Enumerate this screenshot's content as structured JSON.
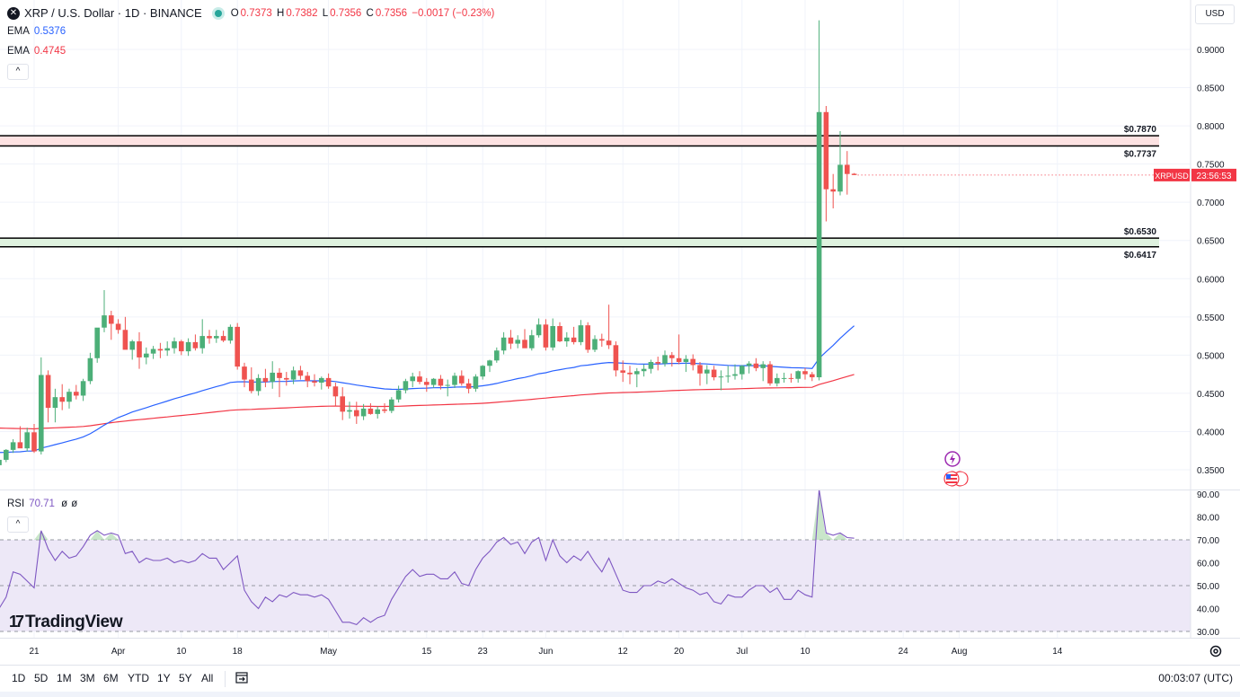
{
  "header": {
    "symbol_icon": "x-icon",
    "title": "XRP / U.S. Dollar · 1D · BINANCE",
    "o_label": "O",
    "o_value": "0.7373",
    "h_label": "H",
    "h_value": "0.7382",
    "l_label": "L",
    "l_value": "0.7356",
    "c_label": "C",
    "c_value": "0.7356",
    "change": "−0.0017 (−0.23%)",
    "ema1_label": "EMA",
    "ema1_value": "0.5376",
    "ema2_label": "EMA",
    "ema2_value": "0.4745",
    "collapse_icon": "^"
  },
  "currency_button": "USD",
  "rsi_legend": {
    "label": "RSI",
    "value": "70.71",
    "p1": "ø",
    "p2": "ø",
    "collapse_icon": "^"
  },
  "logo": {
    "mark": "17",
    "text": "TradingView"
  },
  "bottom_bar": {
    "timeframes": [
      "1D",
      "5D",
      "1M",
      "3M",
      "6M",
      "YTD",
      "1Y",
      "5Y",
      "All"
    ],
    "clock": "00:03:07 (UTC)"
  },
  "colors": {
    "up": "#26a69a",
    "up_candle": "#4caf78",
    "down": "#f23645",
    "down_candle": "#ef5350",
    "ema_fast": "#2962ff",
    "ema_slow": "#f23645",
    "rsi": "#7e57c2",
    "grid": "#f0f3fa"
  },
  "chart_data": {
    "type": "candlestick",
    "title": "XRP / U.S. Dollar · 1D · BINANCE",
    "price_axis": {
      "ylim": [
        0.32,
        0.94
      ],
      "ticks": [
        "0.9000",
        "0.8500",
        "0.8000",
        "0.7500",
        "0.7000",
        "0.6500",
        "0.6000",
        "0.5500",
        "0.5000",
        "0.4500",
        "0.4000",
        "0.3500"
      ]
    },
    "x_axis": {
      "labels": [
        "21",
        "Apr",
        "10",
        "18",
        "May",
        "15",
        "23",
        "Jun",
        "12",
        "20",
        "Jul",
        "10",
        "24",
        "Aug",
        "14"
      ],
      "label_days": [
        5,
        17,
        26,
        34,
        47,
        61,
        69,
        78,
        89,
        97,
        106,
        115,
        129,
        137,
        151
      ]
    },
    "candles": [
      [
        0.356,
        0.365,
        0.354,
        0.363
      ],
      [
        0.363,
        0.377,
        0.36,
        0.376
      ],
      [
        0.376,
        0.39,
        0.372,
        0.386
      ],
      [
        0.386,
        0.407,
        0.38,
        0.378
      ],
      [
        0.378,
        0.405,
        0.374,
        0.399
      ],
      [
        0.399,
        0.41,
        0.372,
        0.374
      ],
      [
        0.374,
        0.497,
        0.37,
        0.474
      ],
      [
        0.474,
        0.48,
        0.412,
        0.431
      ],
      [
        0.431,
        0.456,
        0.412,
        0.445
      ],
      [
        0.445,
        0.462,
        0.428,
        0.439
      ],
      [
        0.439,
        0.456,
        0.43,
        0.452
      ],
      [
        0.452,
        0.461,
        0.442,
        0.447
      ],
      [
        0.447,
        0.469,
        0.44,
        0.466
      ],
      [
        0.466,
        0.503,
        0.462,
        0.496
      ],
      [
        0.496,
        0.532,
        0.49,
        0.536
      ],
      [
        0.536,
        0.585,
        0.53,
        0.552
      ],
      [
        0.552,
        0.558,
        0.52,
        0.541
      ],
      [
        0.541,
        0.547,
        0.528,
        0.533
      ],
      [
        0.533,
        0.55,
        0.508,
        0.507
      ],
      [
        0.507,
        0.52,
        0.494,
        0.518
      ],
      [
        0.518,
        0.53,
        0.482,
        0.497
      ],
      [
        0.497,
        0.51,
        0.488,
        0.502
      ],
      [
        0.502,
        0.512,
        0.495,
        0.508
      ],
      [
        0.508,
        0.516,
        0.496,
        0.506
      ],
      [
        0.506,
        0.518,
        0.499,
        0.509
      ],
      [
        0.509,
        0.523,
        0.502,
        0.518
      ],
      [
        0.518,
        0.52,
        0.5,
        0.505
      ],
      [
        0.505,
        0.522,
        0.499,
        0.517
      ],
      [
        0.517,
        0.527,
        0.506,
        0.509
      ],
      [
        0.509,
        0.547,
        0.502,
        0.525
      ],
      [
        0.525,
        0.533,
        0.515,
        0.522
      ],
      [
        0.522,
        0.533,
        0.516,
        0.525
      ],
      [
        0.525,
        0.532,
        0.517,
        0.519
      ],
      [
        0.519,
        0.54,
        0.515,
        0.537
      ],
      [
        0.537,
        0.542,
        0.481,
        0.485
      ],
      [
        0.485,
        0.49,
        0.458,
        0.468
      ],
      [
        0.468,
        0.484,
        0.45,
        0.453
      ],
      [
        0.453,
        0.475,
        0.447,
        0.47
      ],
      [
        0.47,
        0.482,
        0.458,
        0.465
      ],
      [
        0.465,
        0.492,
        0.456,
        0.477
      ],
      [
        0.477,
        0.483,
        0.445,
        0.47
      ],
      [
        0.47,
        0.478,
        0.46,
        0.468
      ],
      [
        0.468,
        0.485,
        0.462,
        0.48
      ],
      [
        0.48,
        0.486,
        0.468,
        0.473
      ],
      [
        0.473,
        0.478,
        0.458,
        0.466
      ],
      [
        0.466,
        0.475,
        0.459,
        0.464
      ],
      [
        0.464,
        0.472,
        0.455,
        0.47
      ],
      [
        0.47,
        0.476,
        0.456,
        0.459
      ],
      [
        0.459,
        0.464,
        0.433,
        0.446
      ],
      [
        0.446,
        0.458,
        0.415,
        0.426
      ],
      [
        0.426,
        0.439,
        0.417,
        0.428
      ],
      [
        0.428,
        0.439,
        0.41,
        0.42
      ],
      [
        0.42,
        0.436,
        0.415,
        0.43
      ],
      [
        0.43,
        0.437,
        0.422,
        0.423
      ],
      [
        0.423,
        0.433,
        0.417,
        0.429
      ],
      [
        0.429,
        0.437,
        0.424,
        0.427
      ],
      [
        0.427,
        0.445,
        0.424,
        0.442
      ],
      [
        0.442,
        0.46,
        0.438,
        0.454
      ],
      [
        0.454,
        0.469,
        0.45,
        0.466
      ],
      [
        0.466,
        0.477,
        0.458,
        0.472
      ],
      [
        0.472,
        0.479,
        0.462,
        0.465
      ],
      [
        0.465,
        0.47,
        0.452,
        0.461
      ],
      [
        0.461,
        0.47,
        0.457,
        0.469
      ],
      [
        0.469,
        0.474,
        0.455,
        0.46
      ],
      [
        0.46,
        0.468,
        0.446,
        0.461
      ],
      [
        0.461,
        0.477,
        0.457,
        0.473
      ],
      [
        0.473,
        0.48,
        0.46,
        0.463
      ],
      [
        0.463,
        0.469,
        0.45,
        0.456
      ],
      [
        0.456,
        0.475,
        0.452,
        0.472
      ],
      [
        0.472,
        0.487,
        0.468,
        0.486
      ],
      [
        0.486,
        0.494,
        0.478,
        0.493
      ],
      [
        0.493,
        0.51,
        0.49,
        0.506
      ],
      [
        0.506,
        0.53,
        0.501,
        0.523
      ],
      [
        0.523,
        0.533,
        0.508,
        0.515
      ],
      [
        0.515,
        0.526,
        0.509,
        0.52
      ],
      [
        0.52,
        0.534,
        0.511,
        0.509
      ],
      [
        0.509,
        0.533,
        0.506,
        0.526
      ],
      [
        0.526,
        0.548,
        0.523,
        0.54
      ],
      [
        0.54,
        0.547,
        0.506,
        0.51
      ],
      [
        0.51,
        0.548,
        0.506,
        0.538
      ],
      [
        0.538,
        0.543,
        0.517,
        0.518
      ],
      [
        0.518,
        0.53,
        0.511,
        0.523
      ],
      [
        0.523,
        0.537,
        0.514,
        0.517
      ],
      [
        0.517,
        0.546,
        0.513,
        0.539
      ],
      [
        0.539,
        0.543,
        0.503,
        0.507
      ],
      [
        0.507,
        0.526,
        0.504,
        0.521
      ],
      [
        0.521,
        0.528,
        0.511,
        0.519
      ],
      [
        0.519,
        0.566,
        0.508,
        0.513
      ],
      [
        0.513,
        0.518,
        0.472,
        0.48
      ],
      [
        0.48,
        0.493,
        0.465,
        0.477
      ],
      [
        0.477,
        0.486,
        0.462,
        0.475
      ],
      [
        0.475,
        0.483,
        0.458,
        0.479
      ],
      [
        0.479,
        0.488,
        0.472,
        0.482
      ],
      [
        0.482,
        0.494,
        0.476,
        0.491
      ],
      [
        0.491,
        0.498,
        0.48,
        0.489
      ],
      [
        0.489,
        0.506,
        0.485,
        0.5
      ],
      [
        0.5,
        0.504,
        0.485,
        0.496
      ],
      [
        0.496,
        0.527,
        0.488,
        0.491
      ],
      [
        0.491,
        0.5,
        0.478,
        0.495
      ],
      [
        0.495,
        0.501,
        0.48,
        0.487
      ],
      [
        0.487,
        0.491,
        0.46,
        0.476
      ],
      [
        0.476,
        0.487,
        0.462,
        0.481
      ],
      [
        0.481,
        0.486,
        0.467,
        0.471
      ],
      [
        0.471,
        0.48,
        0.454,
        0.472
      ],
      [
        0.472,
        0.486,
        0.464,
        0.473
      ],
      [
        0.473,
        0.488,
        0.468,
        0.475
      ],
      [
        0.475,
        0.487,
        0.468,
        0.486
      ],
      [
        0.486,
        0.492,
        0.476,
        0.489
      ],
      [
        0.489,
        0.496,
        0.479,
        0.483
      ],
      [
        0.483,
        0.492,
        0.466,
        0.488
      ],
      [
        0.488,
        0.492,
        0.46,
        0.463
      ],
      [
        0.463,
        0.476,
        0.459,
        0.47
      ],
      [
        0.47,
        0.477,
        0.464,
        0.47
      ],
      [
        0.47,
        0.476,
        0.464,
        0.469
      ],
      [
        0.469,
        0.48,
        0.464,
        0.479
      ],
      [
        0.479,
        0.483,
        0.468,
        0.475
      ],
      [
        0.475,
        0.478,
        0.466,
        0.471
      ],
      [
        0.471,
        0.938,
        0.467,
        0.818
      ],
      [
        0.818,
        0.826,
        0.675,
        0.717
      ],
      [
        0.717,
        0.737,
        0.692,
        0.714
      ],
      [
        0.714,
        0.793,
        0.709,
        0.749
      ],
      [
        0.749,
        0.767,
        0.71,
        0.737
      ],
      [
        0.7373,
        0.7382,
        0.7356,
        0.7356
      ]
    ],
    "ema_fast": {
      "name": "EMA",
      "value": 0.5376,
      "color": "#2962ff"
    },
    "ema_slow": {
      "name": "EMA",
      "value": 0.4745,
      "color": "#f23645"
    },
    "levels": [
      {
        "name": "resistance",
        "upper": 0.787,
        "lower": 0.7737,
        "upper_label": "$0.7870",
        "lower_label": "$0.7737",
        "fill": "#fde2e2"
      },
      {
        "name": "support",
        "upper": 0.653,
        "lower": 0.6417,
        "upper_label": "$0.6530",
        "lower_label": "$0.6417",
        "fill": "#dff2df"
      }
    ],
    "last_price": {
      "symbol": "XRPUSD",
      "countdown": "23:56:53",
      "price": 0.7356
    },
    "rsi": {
      "name": "RSI",
      "value": 70.71,
      "ylim": [
        28,
        92
      ],
      "ticks": [
        "90.00",
        "80.00",
        "70.00",
        "60.00",
        "50.00",
        "40.00",
        "30.00"
      ],
      "band": [
        30,
        70
      ],
      "mid": 50,
      "values": [
        40,
        45,
        56,
        55,
        52,
        49,
        74,
        66,
        61,
        65,
        62,
        63,
        67,
        72,
        74,
        72,
        73,
        72,
        64,
        65,
        60,
        62,
        61,
        61,
        62,
        60,
        61,
        60,
        61,
        64,
        62,
        62,
        57,
        60,
        63,
        48,
        43,
        40,
        45,
        43,
        46,
        45,
        47,
        46,
        46,
        45,
        46,
        44,
        39,
        34,
        34,
        33,
        36,
        34,
        36,
        37,
        44,
        49,
        54,
        57,
        54,
        55,
        55,
        53,
        53,
        56,
        51,
        50,
        57,
        62,
        65,
        69,
        71,
        68,
        69,
        64,
        69,
        71,
        61,
        70,
        63,
        60,
        63,
        61,
        65,
        60,
        56,
        62,
        55,
        48,
        47,
        47,
        50,
        50,
        52,
        51,
        53,
        51,
        49,
        48,
        46,
        47,
        43,
        42,
        46,
        45,
        45,
        48,
        50,
        50,
        47,
        49,
        44,
        44,
        48,
        46,
        45,
        92,
        73,
        72,
        73,
        71,
        70.71
      ]
    }
  }
}
